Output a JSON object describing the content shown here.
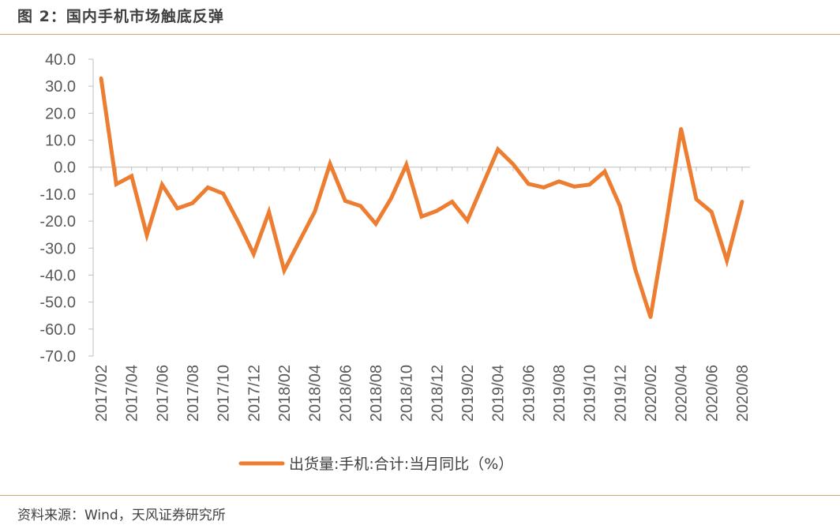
{
  "header": {
    "title": "图 2：国内手机市场触底反弹"
  },
  "footer": {
    "source": "资料来源：Wind，天风证券研究所"
  },
  "colors": {
    "series": "#ED7D31",
    "rule": "#D6A36A",
    "axis": "#BFBFBF",
    "text": "#595959"
  },
  "chart_data": {
    "type": "line",
    "title": "",
    "xlabel": "",
    "ylabel": "",
    "ylim": [
      -70,
      40
    ],
    "yticks": [
      "40.0",
      "30.0",
      "20.0",
      "10.0",
      "0.0",
      "-10.0",
      "-20.0",
      "-30.0",
      "-40.0",
      "-50.0",
      "-60.0",
      "-70.0"
    ],
    "x": [
      "2017/02",
      "2017/03",
      "2017/04",
      "2017/05",
      "2017/06",
      "2017/07",
      "2017/08",
      "2017/09",
      "2017/10",
      "2017/11",
      "2017/12",
      "2018/01",
      "2018/02",
      "2018/03",
      "2018/04",
      "2018/05",
      "2018/06",
      "2018/07",
      "2018/08",
      "2018/09",
      "2018/10",
      "2018/11",
      "2018/12",
      "2019/01",
      "2019/02",
      "2019/03",
      "2019/04",
      "2019/05",
      "2019/06",
      "2019/07",
      "2019/08",
      "2019/09",
      "2019/10",
      "2019/11",
      "2019/12",
      "2020/01",
      "2020/02",
      "2020/03",
      "2020/04",
      "2020/05",
      "2020/06",
      "2020/07",
      "2020/08"
    ],
    "xtick_labels": [
      "2017/02",
      "2017/04",
      "2017/06",
      "2017/08",
      "2017/10",
      "2017/12",
      "2018/02",
      "2018/04",
      "2018/06",
      "2018/08",
      "2018/10",
      "2018/12",
      "2019/02",
      "2019/04",
      "2019/06",
      "2019/08",
      "2019/10",
      "2019/12",
      "2020/02",
      "2020/04",
      "2020/06",
      "2020/08"
    ],
    "series": [
      {
        "name": "出货量:手机:合计:当月同比（%）",
        "values": [
          33.0,
          -6.3,
          -3.3,
          -25.2,
          -6.5,
          -15.3,
          -13.3,
          -7.5,
          -9.8,
          -20.5,
          -32.2,
          -16.6,
          -38.3,
          -27.4,
          -16.5,
          1.2,
          -12.5,
          -14.4,
          -21.0,
          -11.6,
          0.9,
          -18.3,
          -16.2,
          -12.8,
          -19.8,
          -6.6,
          6.6,
          1.1,
          -6.2,
          -7.5,
          -5.3,
          -7.2,
          -6.5,
          -1.6,
          -14.4,
          -37.9,
          -55.6,
          -22.0,
          14.2,
          -11.9,
          -16.6,
          -34.6,
          -12.7
        ]
      }
    ],
    "grid": false,
    "legend": "bottom"
  }
}
